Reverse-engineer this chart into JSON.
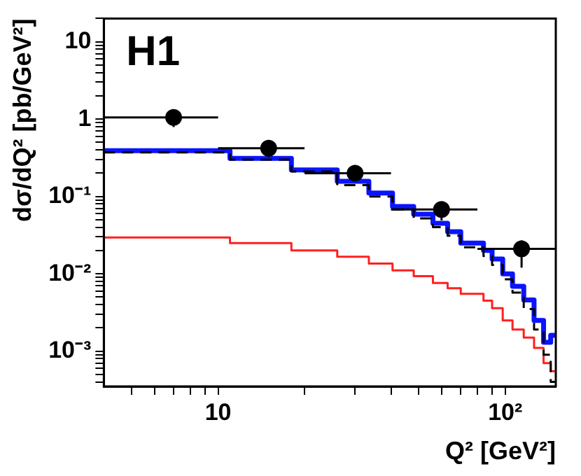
{
  "chart_data": {
    "type": "step",
    "xlabel": "Q² [GeV²]",
    "ylabel": "dσ/dQ² [pb/GeV²]",
    "annotations": [
      "H1"
    ],
    "log": "xy",
    "grid": false,
    "legend": false,
    "xlim": [
      4,
      150
    ],
    "ylim": [
      0.00035,
      20
    ],
    "xticks": [
      {
        "value": 5,
        "label": null
      },
      {
        "value": 6,
        "label": null
      },
      {
        "value": 7,
        "label": null
      },
      {
        "value": 8,
        "label": null
      },
      {
        "value": 9,
        "label": null
      },
      10,
      {
        "value": 20,
        "label": null
      },
      {
        "value": 30,
        "label": null
      },
      {
        "value": 40,
        "label": null
      },
      {
        "value": 50,
        "label": null
      },
      {
        "value": 60,
        "label": null
      },
      {
        "value": 70,
        "label": null
      },
      {
        "value": 80,
        "label": null
      },
      {
        "value": 90,
        "label": null
      },
      {
        "value": 100,
        "label": "10²"
      }
    ],
    "yticks": [
      {
        "value": 0.0004,
        "label": null
      },
      {
        "value": 0.0005,
        "label": null
      },
      {
        "value": 0.0006,
        "label": null
      },
      {
        "value": 0.0007,
        "label": null
      },
      {
        "value": 0.0008,
        "label": null
      },
      {
        "value": 0.0009,
        "label": null
      },
      {
        "value": 0.001,
        "label": "10⁻³"
      },
      {
        "value": 0.002,
        "label": null
      },
      {
        "value": 0.003,
        "label": null
      },
      {
        "value": 0.004,
        "label": null
      },
      {
        "value": 0.005,
        "label": null
      },
      {
        "value": 0.006,
        "label": null
      },
      {
        "value": 0.007,
        "label": null
      },
      {
        "value": 0.008,
        "label": null
      },
      {
        "value": 0.009,
        "label": null
      },
      {
        "value": 0.01,
        "label": "10⁻²"
      },
      {
        "value": 0.02,
        "label": null
      },
      {
        "value": 0.03,
        "label": null
      },
      {
        "value": 0.04,
        "label": null
      },
      {
        "value": 0.05,
        "label": null
      },
      {
        "value": 0.06,
        "label": null
      },
      {
        "value": 0.07,
        "label": null
      },
      {
        "value": 0.08,
        "label": null
      },
      {
        "value": 0.09,
        "label": null
      },
      {
        "value": 0.1,
        "label": "10⁻¹"
      },
      {
        "value": 0.2,
        "label": null
      },
      {
        "value": 0.3,
        "label": null
      },
      {
        "value": 0.4,
        "label": null
      },
      {
        "value": 0.5,
        "label": null
      },
      {
        "value": 0.6,
        "label": null
      },
      {
        "value": 0.7,
        "label": null
      },
      {
        "value": 0.8,
        "label": null
      },
      {
        "value": 0.9,
        "label": null
      },
      1,
      {
        "value": 2,
        "label": null
      },
      {
        "value": 3,
        "label": null
      },
      {
        "value": 4,
        "label": null
      },
      {
        "value": 5,
        "label": null
      },
      {
        "value": 6,
        "label": null
      },
      {
        "value": 7,
        "label": null
      },
      {
        "value": 8,
        "label": null
      },
      {
        "value": 9,
        "label": null
      },
      10,
      {
        "value": 20,
        "label": null
      }
    ],
    "series": [
      {
        "color": "#ff2020",
        "line_style": "solid",
        "marker": "none",
        "x": [
          4,
          11,
          18,
          26,
          33.5,
          40.5,
          48,
          56,
          63,
          70,
          84,
          90,
          98,
          106,
          116,
          126,
          136,
          144,
          150
        ],
        "values": [
          0.0295,
          0.025,
          0.02,
          0.0166,
          0.0136,
          0.0111,
          0.0093,
          0.0076,
          0.0065,
          0.0055,
          0.0045,
          0.0036,
          0.0025,
          0.0019,
          0.0015,
          0.0011,
          0.0007,
          0.00055,
          0.00055
        ]
      },
      {
        "color": "#0a14ff",
        "line_style": "solid",
        "marker": "none",
        "x": [
          4,
          11,
          18,
          26,
          33.5,
          40.5,
          48,
          56,
          63,
          70,
          84,
          90,
          98,
          106,
          116,
          126,
          136,
          144,
          150
        ],
        "values": [
          0.39,
          0.31,
          0.22,
          0.157,
          0.111,
          0.074,
          0.059,
          0.045,
          0.035,
          0.025,
          0.02,
          0.0155,
          0.01,
          0.0069,
          0.0046,
          0.0025,
          0.0013,
          0.0016,
          0.0016
        ]
      },
      {
        "color": "#000000",
        "line_style": "dashed",
        "marker": "none",
        "x": [
          4,
          11,
          18,
          26,
          33.5,
          40.5,
          48,
          56,
          63,
          70,
          84,
          90,
          98,
          106,
          116,
          126,
          136,
          144,
          150
        ],
        "values": [
          0.37,
          0.3,
          0.21,
          0.14,
          0.1,
          0.068,
          0.052,
          0.04,
          0.031,
          0.022,
          0.017,
          0.013,
          0.0085,
          0.0057,
          0.0035,
          0.0019,
          0.0009,
          0.0004,
          0.0004
        ]
      },
      {
        "type": "scatter",
        "color": "#000000",
        "marker": "circle",
        "x": [
          7,
          15,
          30,
          60,
          114
        ],
        "values": [
          1.05,
          0.42,
          0.2,
          0.068,
          0.021
        ],
        "errors": [
          [
            0.79,
            1.29
          ],
          [
            0.32,
            0.53
          ],
          [
            0.157,
            0.245
          ],
          [
            0.049,
            0.083
          ],
          [
            0.012,
            0.027
          ]
        ],
        "xerrors": [
          [
            4,
            10
          ],
          [
            10,
            20
          ],
          [
            20,
            40
          ],
          [
            40,
            80
          ],
          [
            80,
            150
          ]
        ]
      }
    ]
  }
}
